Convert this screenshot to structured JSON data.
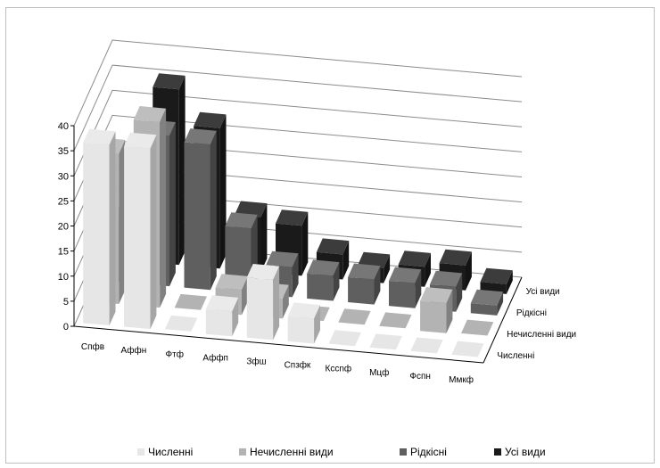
{
  "chart_data": {
    "type": "bar",
    "subtype": "3d-column",
    "categories": [
      "Спфв",
      "Аффн",
      "Фтф",
      "Аффп",
      "Зфш",
      "Спзфк",
      "Кссnф",
      "Мцф",
      "Фспн",
      "Ммкф"
    ],
    "series": [
      {
        "name": "Численні",
        "color": "#e6e6e6",
        "values": [
          36,
          36,
          0,
          5,
          12,
          5,
          0,
          0,
          0,
          0
        ]
      },
      {
        "name": "Нечисленні  види",
        "color": "#b3b3b3",
        "values": [
          30,
          37,
          0,
          5,
          4,
          0,
          0,
          0,
          6,
          0
        ]
      },
      {
        "name": "Рідкісні",
        "color": "#5f5f5f",
        "values": [
          12,
          30,
          29,
          13,
          6,
          5,
          5,
          5,
          5,
          2
        ]
      },
      {
        "name": "Усі види",
        "color": "#1a1a1a",
        "values": [
          0,
          35,
          28,
          11,
          10,
          5,
          3,
          4,
          5,
          2
        ]
      }
    ],
    "yticks": [
      0,
      5,
      10,
      15,
      20,
      25,
      30,
      35,
      40
    ],
    "ylim": [
      0,
      40
    ],
    "depth_labels": [
      "Усі види",
      "Рідкісні",
      "Нечисленні  види",
      "Численні"
    ],
    "legend_position": "bottom",
    "grid": true
  }
}
